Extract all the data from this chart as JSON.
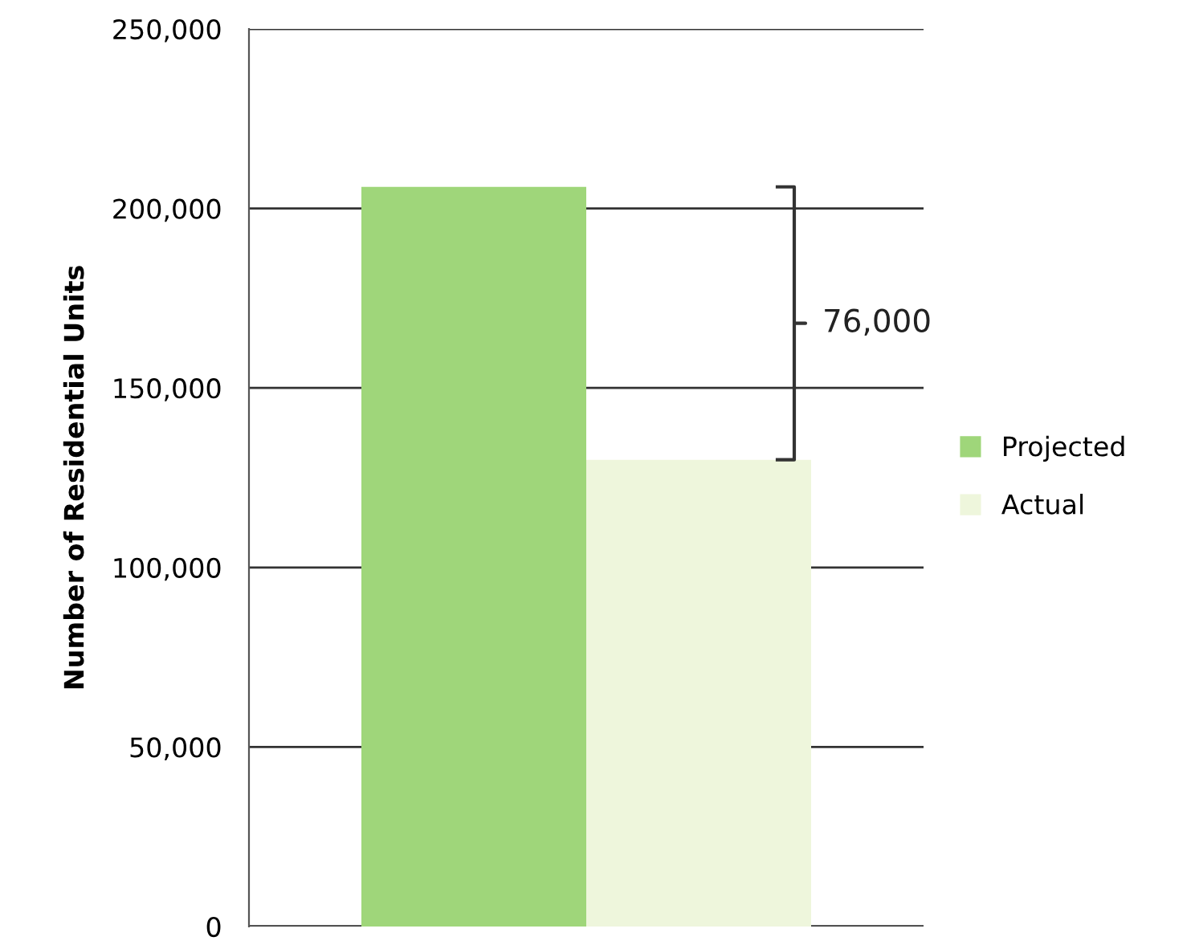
{
  "chart_data": {
    "type": "bar",
    "ylabel": "Number of Residential Units",
    "categories": [
      null
    ],
    "series": [
      {
        "name": "Projected",
        "color": "#9fd67a",
        "values": [
          206000
        ]
      },
      {
        "name": "Actual",
        "color": "#eef6dc",
        "values": [
          130000
        ]
      }
    ],
    "ylim": [
      0,
      250000
    ],
    "yticks": [
      {
        "value": 0,
        "label": "0"
      },
      {
        "value": 50000,
        "label": "50,000"
      },
      {
        "value": 100000,
        "label": "100,000"
      },
      {
        "value": 150000,
        "label": "150,000"
      },
      {
        "value": 200000,
        "label": "200,000"
      },
      {
        "value": 250000,
        "label": "250,000"
      }
    ],
    "grid": "y",
    "legend": "right",
    "annotations": [
      "76,000"
    ]
  }
}
